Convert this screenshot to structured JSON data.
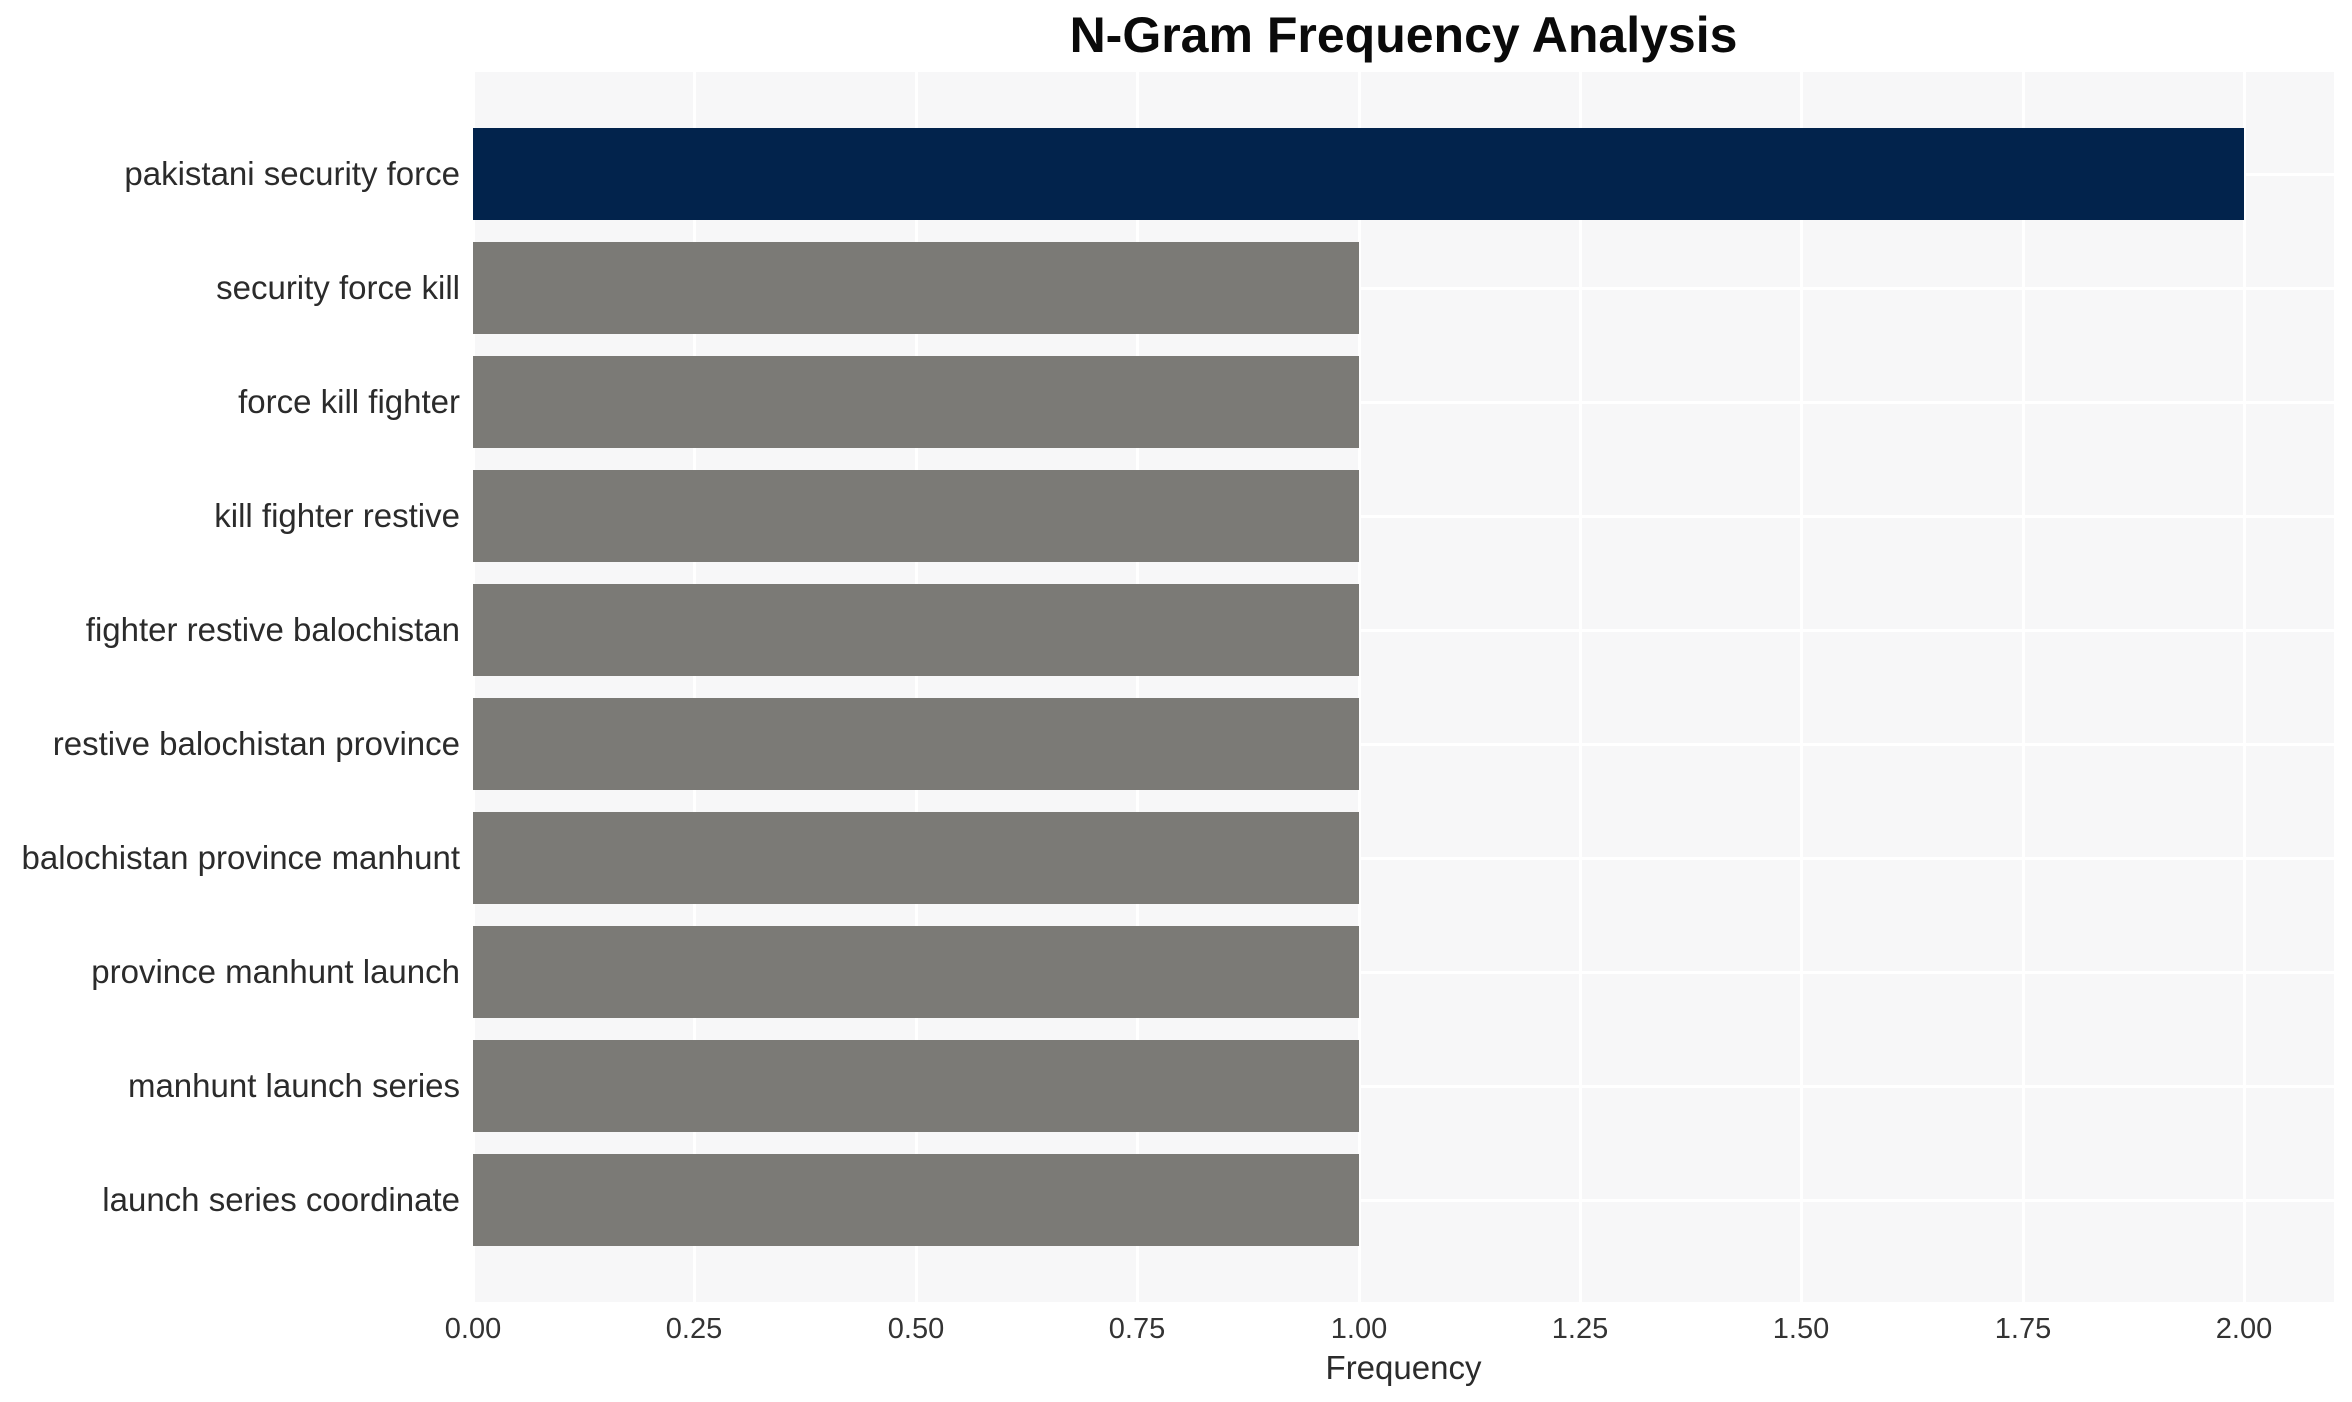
{
  "chart_data": {
    "type": "bar",
    "orientation": "horizontal",
    "title": "N-Gram Frequency Analysis",
    "xlabel": "Frequency",
    "ylabel": "",
    "categories": [
      "pakistani security force",
      "security force kill",
      "force kill fighter",
      "kill fighter restive",
      "fighter restive balochistan",
      "restive balochistan province",
      "balochistan province manhunt",
      "province manhunt launch",
      "manhunt launch series",
      "launch series coordinate"
    ],
    "values": [
      2,
      1,
      1,
      1,
      1,
      1,
      1,
      1,
      1,
      1
    ],
    "bar_colors": [
      "#02234c",
      "#7b7a76",
      "#7b7a76",
      "#7b7a76",
      "#7b7a76",
      "#7b7a76",
      "#7b7a76",
      "#7b7a76",
      "#7b7a76",
      "#7b7a76"
    ],
    "xlim": [
      0,
      2.1
    ],
    "xticks": [
      "0.00",
      "0.25",
      "0.50",
      "0.75",
      "1.00",
      "1.25",
      "1.50",
      "1.75",
      "2.00"
    ],
    "xtick_values": [
      0,
      0.25,
      0.5,
      0.75,
      1.0,
      1.25,
      1.5,
      1.75,
      2.0
    ],
    "grid": true,
    "legend": false,
    "colors": {
      "highlight_bar": "#02234c",
      "default_bar": "#7b7a76",
      "plot_background": "#f7f7f8",
      "gridline": "#ffffff",
      "title_text": "#0a0a0a",
      "label_text": "#2b2b2b",
      "tick_text": "#333333"
    }
  }
}
